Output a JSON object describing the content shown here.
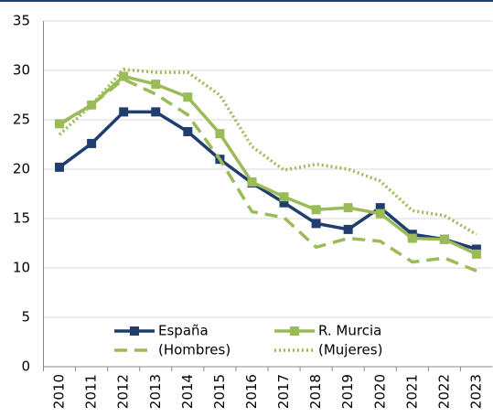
{
  "chart_data": {
    "type": "line",
    "categories": [
      "2010",
      "2011",
      "2012",
      "2013",
      "2014",
      "2015",
      "2016",
      "2017",
      "2018",
      "2019",
      "2020",
      "2021",
      "2022",
      "2023"
    ],
    "series": [
      {
        "name": "España",
        "color": "#1f3e6e",
        "style": "solid",
        "marker": "square",
        "values": [
          20.2,
          22.6,
          25.8,
          25.8,
          23.8,
          21.0,
          18.6,
          16.6,
          14.5,
          13.9,
          16.1,
          13.4,
          12.9,
          11.9
        ]
      },
      {
        "name": "R. Murcia",
        "color": "#9bbb59",
        "style": "solid",
        "marker": "square",
        "values": [
          24.6,
          26.5,
          29.4,
          28.6,
          27.3,
          23.6,
          18.7,
          17.2,
          15.9,
          16.1,
          15.5,
          13.0,
          12.9,
          11.4
        ]
      },
      {
        "name": "(Hombres)",
        "color": "#9bbb59",
        "style": "dashed",
        "marker": "none",
        "values": [
          24.5,
          26.5,
          29.1,
          27.6,
          25.5,
          21.0,
          15.7,
          15.1,
          12.1,
          13.0,
          12.7,
          10.6,
          11.0,
          9.7
        ]
      },
      {
        "name": "(Mujeres)",
        "color": "#9bbb59",
        "style": "dotted",
        "marker": "none",
        "values": [
          23.5,
          26.5,
          30.1,
          29.8,
          29.8,
          27.5,
          22.3,
          19.9,
          20.5,
          20.0,
          18.8,
          15.8,
          15.3,
          13.4
        ]
      }
    ],
    "ylim": [
      0,
      35
    ],
    "yticks": [
      0,
      5,
      10,
      15,
      20,
      25,
      30,
      35
    ],
    "grid": true,
    "legend": "lower center"
  }
}
